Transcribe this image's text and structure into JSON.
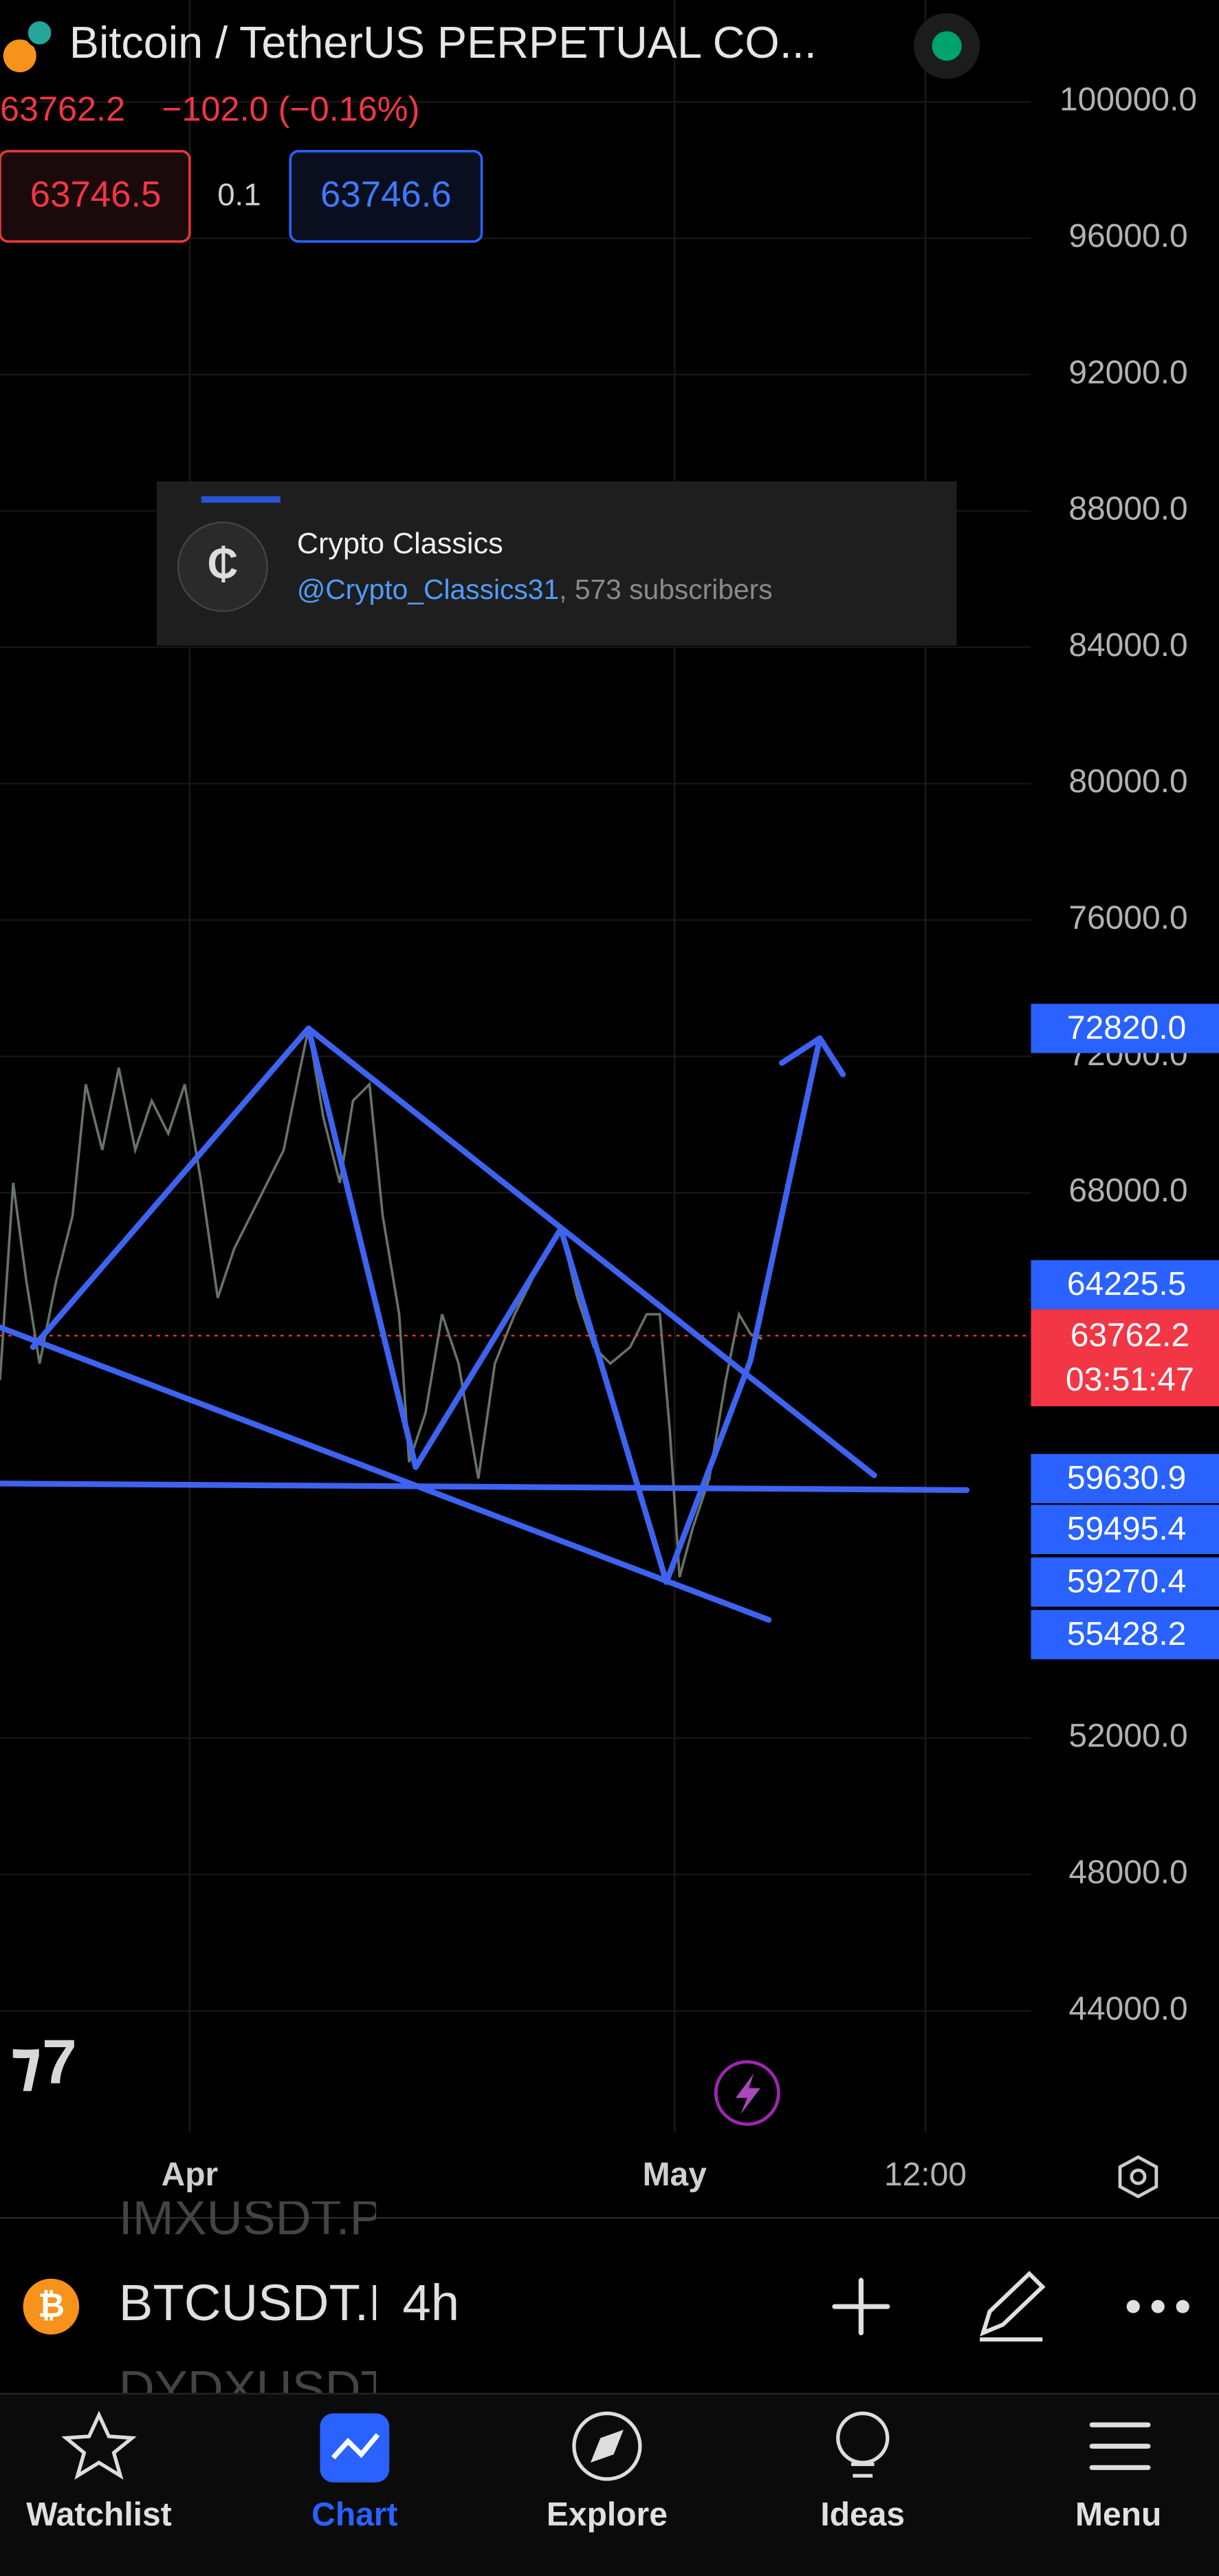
{
  "header": {
    "title": "Bitcoin / TetherUS PERPETUAL CO...",
    "price": "63762.2",
    "change": "−102.0 (−0.16%)",
    "sell": "63746.5",
    "spread": "0.1",
    "buy": "63746.6"
  },
  "price_axis": {
    "ticks": [
      {
        "value": 100000,
        "label": "100000.0"
      },
      {
        "value": 96000,
        "label": "96000.0"
      },
      {
        "value": 92000,
        "label": "92000.0"
      },
      {
        "value": 88000,
        "label": "88000.0"
      },
      {
        "value": 84000,
        "label": "84000.0"
      },
      {
        "value": 80000,
        "label": "80000.0"
      },
      {
        "value": 76000,
        "label": "76000.0"
      },
      {
        "value": 72000,
        "label": "72000.0"
      },
      {
        "value": 68000,
        "label": "68000.0"
      },
      {
        "value": 52000,
        "label": "52000.0"
      },
      {
        "value": 48000,
        "label": "48000.0"
      },
      {
        "value": 44000,
        "label": "44000.0"
      }
    ],
    "badges": [
      "72820.0",
      "64225.5",
      "59630.9",
      "59495.4",
      "59270.4",
      "55428.2"
    ],
    "last_price": "63762.2",
    "countdown": "03:51:47"
  },
  "time_axis": [
    "Apr",
    "May",
    "12:00"
  ],
  "overlay": {
    "name": "Crypto Classics",
    "handle": "@Crypto_Classics31",
    "subscribers": ", 573 subscribers"
  },
  "toolbar": {
    "symbol": "BTCUSDT.P",
    "interval": "4h",
    "prev_symbol": "IMXUSDT.P",
    "next_symbol": "DYDXUSDT"
  },
  "nav": [
    "Watchlist",
    "Chart",
    "Explore",
    "Ideas",
    "Menu"
  ]
}
